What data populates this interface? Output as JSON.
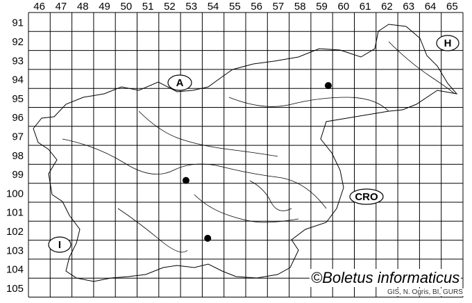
{
  "map": {
    "columns": [
      "46",
      "47",
      "48",
      "49",
      "50",
      "51",
      "52",
      "53",
      "54",
      "55",
      "56",
      "57",
      "58",
      "59",
      "60",
      "61",
      "62",
      "63",
      "64",
      "65"
    ],
    "rows": [
      "91",
      "92",
      "93",
      "94",
      "95",
      "96",
      "97",
      "98",
      "99",
      "100",
      "101",
      "102",
      "103",
      "104",
      "105"
    ],
    "country_labels": [
      {
        "text": "A",
        "name": "austria"
      },
      {
        "text": "H",
        "name": "hungary"
      },
      {
        "text": "CRO",
        "name": "croatia"
      },
      {
        "text": "I",
        "name": "italy"
      }
    ],
    "records": [
      {
        "column": "59",
        "row": "94"
      },
      {
        "column": "53",
        "row": "99"
      },
      {
        "column": "54",
        "row": "102"
      }
    ],
    "colors": {
      "grid": "#000000",
      "dot": "#000000",
      "background": "#ffffff"
    }
  },
  "copyright": "©Boletus informaticus",
  "credit": "GIS, N. Ogris, BI, GURS"
}
